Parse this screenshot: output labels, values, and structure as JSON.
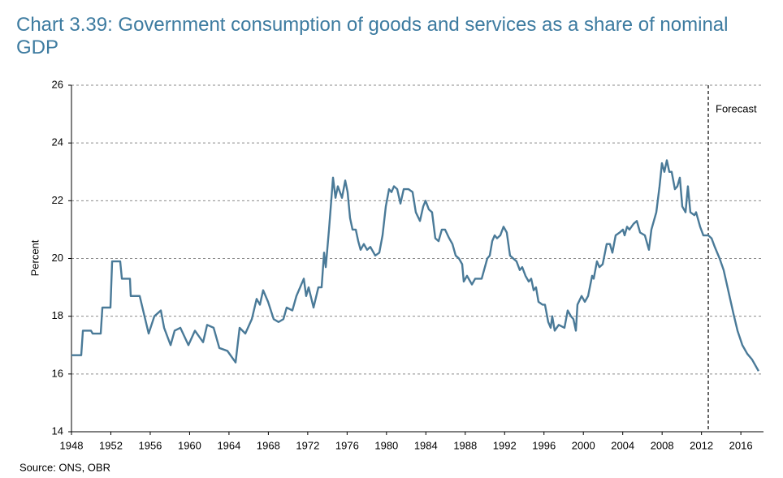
{
  "chart_data": {
    "type": "line",
    "title": "Chart 3.39: Government consumption of goods and services as a share of nominal GDP",
    "ylabel": "Percent",
    "source": "Source: ONS, OBR",
    "annotation": "Forecast",
    "forecast_x": 2012.69,
    "color": "#4a7a98",
    "grid": true,
    "xlim": [
      1948,
      2018.3
    ],
    "xticks": [
      1948,
      1952,
      1956,
      1960,
      1964,
      1968,
      1972,
      1976,
      1980,
      1984,
      1988,
      1992,
      1996,
      2000,
      2004,
      2008,
      2012,
      2016
    ],
    "ylim": [
      14,
      26
    ],
    "yticks": [
      14,
      16,
      18,
      20,
      22,
      24,
      26
    ],
    "x": [
      1948.0,
      1948.99,
      1949.16,
      1949.98,
      1950.15,
      1950.97,
      1951.14,
      1951.96,
      1952.13,
      1952.95,
      1953.12,
      1953.94,
      1954.02,
      1954.93,
      1955.84,
      1956.42,
      1957.08,
      1957.41,
      1958.07,
      1958.48,
      1959.06,
      1959.88,
      1960.54,
      1961.37,
      1961.78,
      1962.44,
      1963.02,
      1963.84,
      1964.67,
      1965.08,
      1965.66,
      1966.32,
      1966.81,
      1967.14,
      1967.47,
      1967.97,
      1968.54,
      1969.04,
      1969.53,
      1969.86,
      1970.44,
      1970.85,
      1971.6,
      1971.84,
      1972.09,
      1972.59,
      1973.08,
      1973.41,
      1973.66,
      1973.83,
      1974.16,
      1974.57,
      1974.82,
      1975.06,
      1975.48,
      1975.81,
      1976.05,
      1976.3,
      1976.55,
      1976.88,
      1977.13,
      1977.37,
      1977.7,
      1978.03,
      1978.36,
      1978.86,
      1979.27,
      1979.6,
      1979.93,
      1980.26,
      1980.51,
      1980.76,
      1981.09,
      1981.42,
      1981.75,
      1982.24,
      1982.65,
      1982.98,
      1983.4,
      1983.73,
      1983.97,
      1984.3,
      1984.63,
      1984.96,
      1985.29,
      1985.62,
      1985.95,
      1986.37,
      1986.7,
      1987.03,
      1987.36,
      1987.69,
      1987.85,
      1988.18,
      1988.68,
      1989.01,
      1989.67,
      1990.24,
      1990.49,
      1990.74,
      1990.99,
      1991.23,
      1991.56,
      1991.89,
      1992.22,
      1992.55,
      1992.88,
      1993.21,
      1993.54,
      1993.79,
      1994.12,
      1994.45,
      1994.7,
      1994.95,
      1995.19,
      1995.44,
      1995.85,
      1996.1,
      1996.43,
      1996.68,
      1996.84,
      1997.09,
      1997.5,
      1998.08,
      1998.41,
      1998.74,
      1998.99,
      1999.24,
      1999.4,
      1999.82,
      2000.15,
      2000.48,
      2000.89,
      2001.05,
      2001.38,
      2001.63,
      2001.96,
      2002.37,
      2002.7,
      2002.95,
      2003.28,
      2003.69,
      2004.02,
      2004.19,
      2004.44,
      2004.68,
      2005.1,
      2005.43,
      2005.76,
      2006.25,
      2006.66,
      2006.91,
      2007.16,
      2007.41,
      2007.74,
      2007.98,
      2008.23,
      2008.48,
      2008.73,
      2008.97,
      2009.3,
      2009.55,
      2009.8,
      2010.05,
      2010.38,
      2010.62,
      2010.87,
      2011.28,
      2011.45,
      2011.86,
      2012.19,
      2012.69,
      2013.02,
      2013.35,
      2013.84,
      2014.25,
      2014.58,
      2014.91,
      2015.24,
      2015.66,
      2016.15,
      2016.65,
      2017.14,
      2017.8
    ],
    "values": [
      16.65,
      16.65,
      17.5,
      17.5,
      17.4,
      17.4,
      18.3,
      18.3,
      19.9,
      19.9,
      19.3,
      19.3,
      18.7,
      18.7,
      17.4,
      18.0,
      18.2,
      17.6,
      17.0,
      17.5,
      17.6,
      17.0,
      17.5,
      17.1,
      17.7,
      17.6,
      16.9,
      16.8,
      16.4,
      17.6,
      17.4,
      17.9,
      18.6,
      18.4,
      18.9,
      18.5,
      17.9,
      17.8,
      17.9,
      18.3,
      18.2,
      18.7,
      19.3,
      18.7,
      19.0,
      18.3,
      19.0,
      19.0,
      20.2,
      19.7,
      21.0,
      22.8,
      22.1,
      22.5,
      22.1,
      22.7,
      22.3,
      21.4,
      21.0,
      21.0,
      20.6,
      20.3,
      20.5,
      20.3,
      20.4,
      20.1,
      20.2,
      20.8,
      21.8,
      22.4,
      22.3,
      22.5,
      22.4,
      21.9,
      22.4,
      22.4,
      22.3,
      21.6,
      21.3,
      21.8,
      22.0,
      21.7,
      21.6,
      20.7,
      20.6,
      21.0,
      21.0,
      20.7,
      20.5,
      20.1,
      20.0,
      19.8,
      19.2,
      19.4,
      19.1,
      19.3,
      19.3,
      20.0,
      20.1,
      20.6,
      20.8,
      20.7,
      20.8,
      21.1,
      20.9,
      20.1,
      20.0,
      19.9,
      19.6,
      19.7,
      19.4,
      19.2,
      19.3,
      18.9,
      19.0,
      18.5,
      18.4,
      18.4,
      17.8,
      17.6,
      18.0,
      17.5,
      17.7,
      17.6,
      18.2,
      18.0,
      17.9,
      17.5,
      18.4,
      18.7,
      18.5,
      18.7,
      19.4,
      19.3,
      19.9,
      19.7,
      19.8,
      20.5,
      20.5,
      20.2,
      20.8,
      20.9,
      21.0,
      20.8,
      21.1,
      21.0,
      21.2,
      21.3,
      20.9,
      20.8,
      20.3,
      21.0,
      21.3,
      21.6,
      22.5,
      23.3,
      23.0,
      23.4,
      23.0,
      23.0,
      22.4,
      22.5,
      22.8,
      21.8,
      21.6,
      22.5,
      21.6,
      21.5,
      21.6,
      21.1,
      20.8,
      20.8,
      20.7,
      20.4,
      20.0,
      19.6,
      19.1,
      18.6,
      18.1,
      17.5,
      17.0,
      16.7,
      16.5,
      16.1
    ]
  }
}
